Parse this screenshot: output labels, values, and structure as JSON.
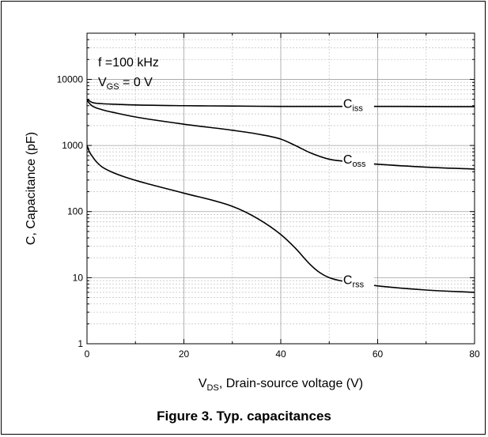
{
  "caption": "Figure 3. Typ. capacitances",
  "chart_data": {
    "type": "line",
    "x_scale": "linear",
    "y_scale": "log",
    "xlim": [
      0,
      80
    ],
    "ylim": [
      1,
      50000
    ],
    "x_ticks": [
      0,
      20,
      40,
      60,
      80
    ],
    "y_ticks": [
      1,
      10,
      100,
      1000,
      10000
    ],
    "x_tick_labels": [
      "0",
      "20",
      "40",
      "60",
      "80"
    ],
    "y_tick_labels": [
      "1",
      "10",
      "100",
      "1000",
      "10000"
    ],
    "xlabel": {
      "main": "V",
      "sub": "DS",
      "rest": ", Drain-source voltage (V)"
    },
    "ylabel": "C, Capacitance (pF)",
    "grid": true,
    "annotation": {
      "line1": "f =100 kHz",
      "line2_main": "V",
      "line2_sub": "GS",
      "line2_rest": " = 0 V"
    },
    "series": [
      {
        "name": "Ciss",
        "label_main": "C",
        "label_sub": "iss",
        "x": [
          0,
          1,
          3,
          6,
          10,
          20,
          30,
          40,
          50,
          60,
          70,
          80
        ],
        "y": [
          5000,
          4500,
          4300,
          4200,
          4100,
          4000,
          3950,
          3900,
          3900,
          3900,
          3880,
          3870
        ]
      },
      {
        "name": "Coss",
        "label_main": "C",
        "label_sub": "oss",
        "x": [
          0,
          1,
          3,
          6,
          10,
          20,
          30,
          35,
          40,
          43,
          46,
          50,
          55,
          60,
          70,
          80
        ],
        "y": [
          4800,
          4000,
          3500,
          3100,
          2700,
          2100,
          1700,
          1500,
          1250,
          1000,
          780,
          620,
          560,
          520,
          470,
          440
        ]
      },
      {
        "name": "Crss",
        "label_main": "C",
        "label_sub": "rss",
        "x": [
          0,
          0.5,
          1,
          2,
          3,
          5,
          8,
          12,
          20,
          30,
          35,
          40,
          43,
          46,
          48,
          50,
          53,
          56,
          60,
          70,
          80
        ],
        "y": [
          1000,
          800,
          700,
          560,
          480,
          400,
          330,
          270,
          190,
          120,
          80,
          45,
          28,
          16,
          12,
          10,
          8.8,
          8.2,
          7.5,
          6.5,
          6
        ]
      }
    ]
  }
}
